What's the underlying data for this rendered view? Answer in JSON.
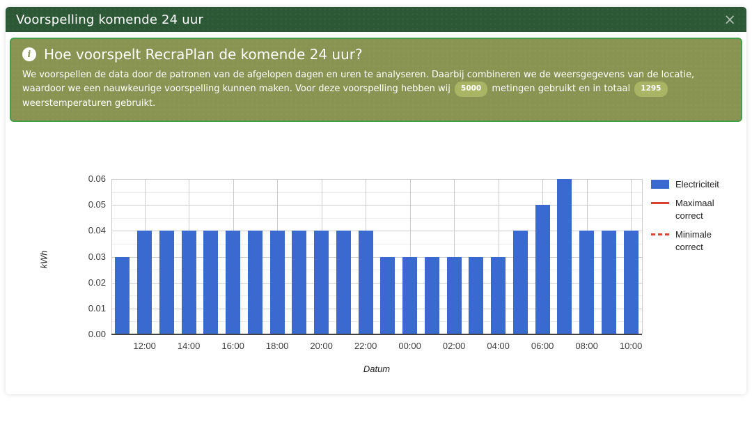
{
  "modal": {
    "title": "Voorspelling komende 24 uur",
    "close_label": "×"
  },
  "info_box": {
    "icon": "i",
    "heading": "Hoe voorspelt RecraPlan de komende 24 uur?",
    "body_part1": "We voorspellen de data door de patronen van de afgelopen dagen en uren te analyseren. Daarbij combineren we de weersgegevens van de locatie, waardoor we een nauwkeurige voorspelling kunnen maken. Voor deze voorspelling hebben wij",
    "badge_metingen": "5000",
    "body_part2": "metingen gebruikt en in totaal",
    "badge_temperaturen": "1295",
    "body_part3": "weerstemperaturen gebruikt."
  },
  "chart_data": {
    "type": "bar",
    "title": "",
    "xlabel": "Datum",
    "ylabel": "kWh",
    "ylim": [
      0,
      0.06
    ],
    "grid": true,
    "legend_position": "right",
    "categories": [
      "11:00",
      "12:00",
      "13:00",
      "14:00",
      "15:00",
      "16:00",
      "17:00",
      "18:00",
      "19:00",
      "20:00",
      "21:00",
      "22:00",
      "23:00",
      "00:00",
      "01:00",
      "02:00",
      "03:00",
      "04:00",
      "05:00",
      "06:00",
      "07:00",
      "08:00",
      "09:00",
      "10:00"
    ],
    "values": [
      0.03,
      0.04,
      0.04,
      0.04,
      0.04,
      0.04,
      0.04,
      0.04,
      0.04,
      0.04,
      0.04,
      0.04,
      0.03,
      0.03,
      0.03,
      0.03,
      0.03,
      0.03,
      0.04,
      0.05,
      0.06,
      0.04,
      0.04,
      0.04
    ],
    "x_tick_labels": [
      "12:00",
      "14:00",
      "16:00",
      "18:00",
      "20:00",
      "22:00",
      "00:00",
      "02:00",
      "04:00",
      "06:00",
      "08:00",
      "10:00"
    ],
    "y_tick_labels": [
      "0.00",
      "0.01",
      "0.02",
      "0.03",
      "0.04",
      "0.05",
      "0.06"
    ],
    "series_name": "Electriciteit",
    "legend": [
      {
        "label": "Electriciteit",
        "swatch": "box"
      },
      {
        "label": "Maximaal correct",
        "swatch": "line"
      },
      {
        "label": "Minimale correct",
        "swatch": "dashed-line"
      }
    ],
    "colors": {
      "bar": "#3a6ad0",
      "reference_line": "#dd4330",
      "grid_major": "#cccccc",
      "grid_minor": "#ececec",
      "baseline": "#424242"
    }
  },
  "theme": {
    "header_bg": "#2d5836",
    "info_bg": "#8a9452",
    "info_border": "#43a047",
    "badge_bg": "#a9b465"
  }
}
